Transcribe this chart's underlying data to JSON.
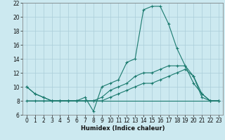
{
  "xlabel": "Humidex (Indice chaleur)",
  "background_color": "#cce9f0",
  "grid_color": "#aacdd8",
  "line_color": "#1a7a6e",
  "xlim": [
    -0.5,
    23.5
  ],
  "ylim": [
    6,
    22
  ],
  "yticks": [
    6,
    8,
    10,
    12,
    14,
    16,
    18,
    20,
    22
  ],
  "xticks": [
    0,
    1,
    2,
    3,
    4,
    5,
    6,
    7,
    8,
    9,
    10,
    11,
    12,
    13,
    14,
    15,
    16,
    17,
    18,
    19,
    20,
    21,
    22,
    23
  ],
  "line1_x": [
    0,
    1,
    2,
    3,
    4,
    5,
    6,
    7,
    8,
    9,
    10,
    11,
    12,
    13,
    14,
    15,
    16,
    17,
    18,
    19,
    20,
    21,
    22,
    23
  ],
  "line1_y": [
    10.0,
    9.0,
    8.5,
    8.0,
    8.0,
    8.0,
    8.0,
    8.5,
    6.5,
    10.0,
    10.5,
    11.0,
    13.5,
    14.0,
    21.0,
    21.5,
    21.5,
    19.0,
    15.5,
    13.0,
    11.5,
    9.0,
    8.0,
    8.0
  ],
  "line2_x": [
    0,
    1,
    2,
    3,
    4,
    5,
    6,
    7,
    8,
    9,
    10,
    11,
    12,
    13,
    14,
    15,
    16,
    17,
    18,
    19,
    20,
    21,
    22,
    23
  ],
  "line2_y": [
    8.0,
    8.0,
    8.0,
    8.0,
    8.0,
    8.0,
    8.0,
    8.0,
    8.0,
    8.0,
    8.5,
    9.0,
    9.5,
    10.0,
    10.5,
    10.5,
    11.0,
    11.5,
    12.0,
    12.5,
    11.5,
    8.5,
    8.0,
    8.0
  ],
  "line3_x": [
    0,
    23
  ],
  "line3_y": [
    8.0,
    8.0
  ],
  "line4_x": [
    0,
    1,
    2,
    3,
    4,
    5,
    6,
    7,
    8,
    9,
    10,
    11,
    12,
    13,
    14,
    15,
    16,
    17,
    18,
    19,
    20,
    21,
    22,
    23
  ],
  "line4_y": [
    10.0,
    9.0,
    8.5,
    8.0,
    8.0,
    8.0,
    8.0,
    8.0,
    8.0,
    8.5,
    9.5,
    10.0,
    10.5,
    11.5,
    12.0,
    12.0,
    12.5,
    13.0,
    13.0,
    13.0,
    10.5,
    9.0,
    8.0,
    8.0
  ]
}
